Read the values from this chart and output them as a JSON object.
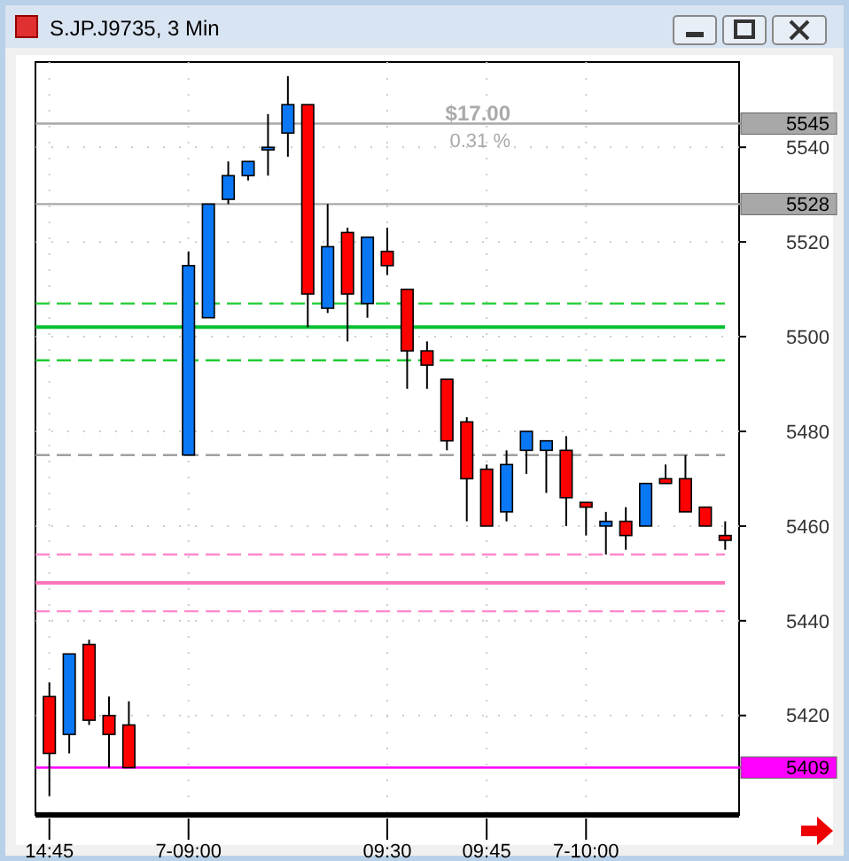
{
  "chart_data": {
    "type": "candlestick",
    "title": "S.JP.J9735, 3 Min",
    "categories": [
      "14:45",
      null,
      null,
      null,
      null,
      null,
      null,
      "7-09:00",
      null,
      null,
      null,
      null,
      null,
      null,
      null,
      null,
      null,
      "09:30",
      null,
      null,
      null,
      null,
      "09:45",
      null,
      null,
      null,
      null,
      "7-10:00",
      null,
      null,
      null,
      null,
      null,
      null,
      null
    ],
    "ohlc": [
      [
        5424,
        5427,
        5403,
        5412
      ],
      [
        5416,
        5433,
        5412,
        5433
      ],
      [
        5435,
        5436,
        5418,
        5419
      ],
      [
        5420,
        5424,
        5409,
        5416
      ],
      [
        5418,
        5423,
        5409,
        5409
      ],
      null,
      null,
      [
        5475,
        5518,
        5475,
        5515
      ],
      [
        5504,
        5528,
        5504,
        5528
      ],
      [
        5529,
        5537,
        5528,
        5534
      ],
      [
        5534,
        5537,
        5533,
        5537
      ],
      [
        5540,
        5547,
        5534,
        5540
      ],
      [
        5543,
        5555,
        5538,
        5549
      ],
      [
        5549,
        5549,
        5502,
        5509
      ],
      [
        5506,
        5528,
        5505,
        5519
      ],
      [
        5522,
        5523,
        5499,
        5509
      ],
      [
        5507,
        5521,
        5504,
        5521
      ],
      [
        5518,
        5523,
        5513,
        5515
      ],
      [
        5510,
        5510,
        5489,
        5497
      ],
      [
        5497,
        5499,
        5489,
        5494
      ],
      [
        5491,
        5491,
        5476,
        5478
      ],
      [
        5482,
        5483,
        5461,
        5470
      ],
      [
        5472,
        5473,
        5460,
        5460
      ],
      [
        5463,
        5476,
        5461,
        5473
      ],
      [
        5476,
        5480,
        5471,
        5480
      ],
      [
        5476,
        5478,
        5467,
        5478
      ],
      [
        5476,
        5479,
        5460,
        5466
      ],
      [
        5465,
        5465,
        5458,
        5464
      ],
      [
        5460,
        5463,
        5454,
        5461
      ],
      [
        5461,
        5464,
        5455,
        5458
      ],
      [
        5460,
        5469,
        5460,
        5469
      ],
      [
        5470,
        5473,
        5469,
        5469
      ],
      [
        5470,
        5475,
        5463,
        5463
      ],
      [
        5464,
        5464,
        5460,
        5460
      ],
      [
        5458,
        5461,
        5455,
        5457
      ]
    ],
    "colors": [
      "#ff0000",
      "#0a78f5",
      "#ff0000",
      "#ff0000",
      "#ff0000",
      null,
      null,
      "#0a78f5",
      "#0a78f5",
      "#0a78f5",
      "#0a78f5",
      "#0a78f5",
      "#0a78f5",
      "#ff0000",
      "#0a78f5",
      "#ff0000",
      "#0a78f5",
      "#ff0000",
      "#ff0000",
      "#ff0000",
      "#ff0000",
      "#ff0000",
      "#ff0000",
      "#0a78f5",
      "#0a78f5",
      "#0a78f5",
      "#ff0000",
      "#ff0000",
      "#0a78f5",
      "#ff0000",
      "#0a78f5",
      "#ff0000",
      "#ff0000",
      "#ff0000",
      "#ff0000"
    ],
    "ylim": [
      5399,
      5558
    ],
    "yticks": [
      5420,
      5440,
      5460,
      5480,
      5500,
      5520,
      5540
    ],
    "grid": true,
    "ref_lines": [
      {
        "axis": "y",
        "value": 5545,
        "label": "5545",
        "color": "#a8a8a8",
        "line_style": "solid"
      },
      {
        "axis": "y",
        "value": 5528,
        "label": "5528",
        "color": "#a8a8a8",
        "line_style": "solid"
      },
      {
        "axis": "y",
        "value": 5507,
        "color": "#22cc33",
        "line_style": "dashed"
      },
      {
        "axis": "y",
        "value": 5502,
        "color": "#00c030",
        "line_style": "solid"
      },
      {
        "axis": "y",
        "value": 5495,
        "color": "#22cc33",
        "line_style": "dashed"
      },
      {
        "axis": "y",
        "value": 5475,
        "color": "#a0a0a0",
        "line_style": "dashed"
      },
      {
        "axis": "y",
        "value": 5454,
        "color": "#ff88cc",
        "line_style": "dashed"
      },
      {
        "axis": "y",
        "value": 5448,
        "color": "#ff77bb",
        "line_style": "solid"
      },
      {
        "axis": "y",
        "value": 5442,
        "color": "#ff88cc",
        "line_style": "dashed"
      },
      {
        "axis": "y",
        "value": 5409,
        "label": "5409",
        "color": "#ff00ff",
        "line_style": "solid"
      }
    ],
    "annotations": [
      "$17.00",
      "0.31 %"
    ]
  }
}
